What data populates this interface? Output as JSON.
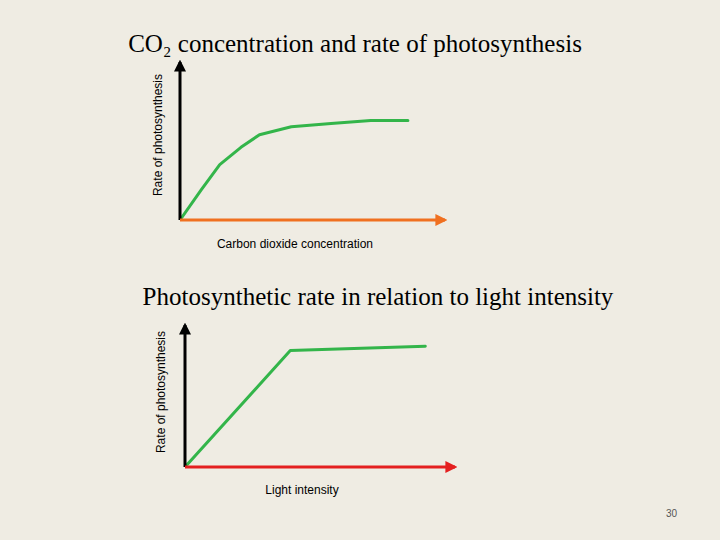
{
  "chart_data": [
    {
      "type": "line",
      "title": "CO₂ concentration and rate of photosynthesis",
      "x_label": "Carbon dioxide concentration",
      "y_label": "Rate of photosynthesis",
      "x": [
        0,
        8,
        15,
        23,
        30,
        42,
        57,
        72,
        86
      ],
      "series": [
        {
          "color": "#33b54a",
          "values": [
            0,
            19,
            35,
            46,
            54,
            59,
            61,
            63,
            63
          ]
        }
      ],
      "xlim": [
        0,
        100
      ],
      "ylim": [
        0,
        100
      ],
      "tick_labels": false
    },
    {
      "type": "line",
      "title": "Photosynthetic rate in relation to light intensity",
      "x_label": "Light intensity",
      "y_label": "Rate of photosynthesis",
      "x": [
        0,
        39,
        89
      ],
      "series": [
        {
          "color": "#33b54a",
          "values": [
            0,
            82,
            85
          ]
        }
      ],
      "xlim": [
        0,
        100
      ],
      "ylim": [
        0,
        100
      ],
      "tick_labels": false
    }
  ],
  "page_number": "30"
}
